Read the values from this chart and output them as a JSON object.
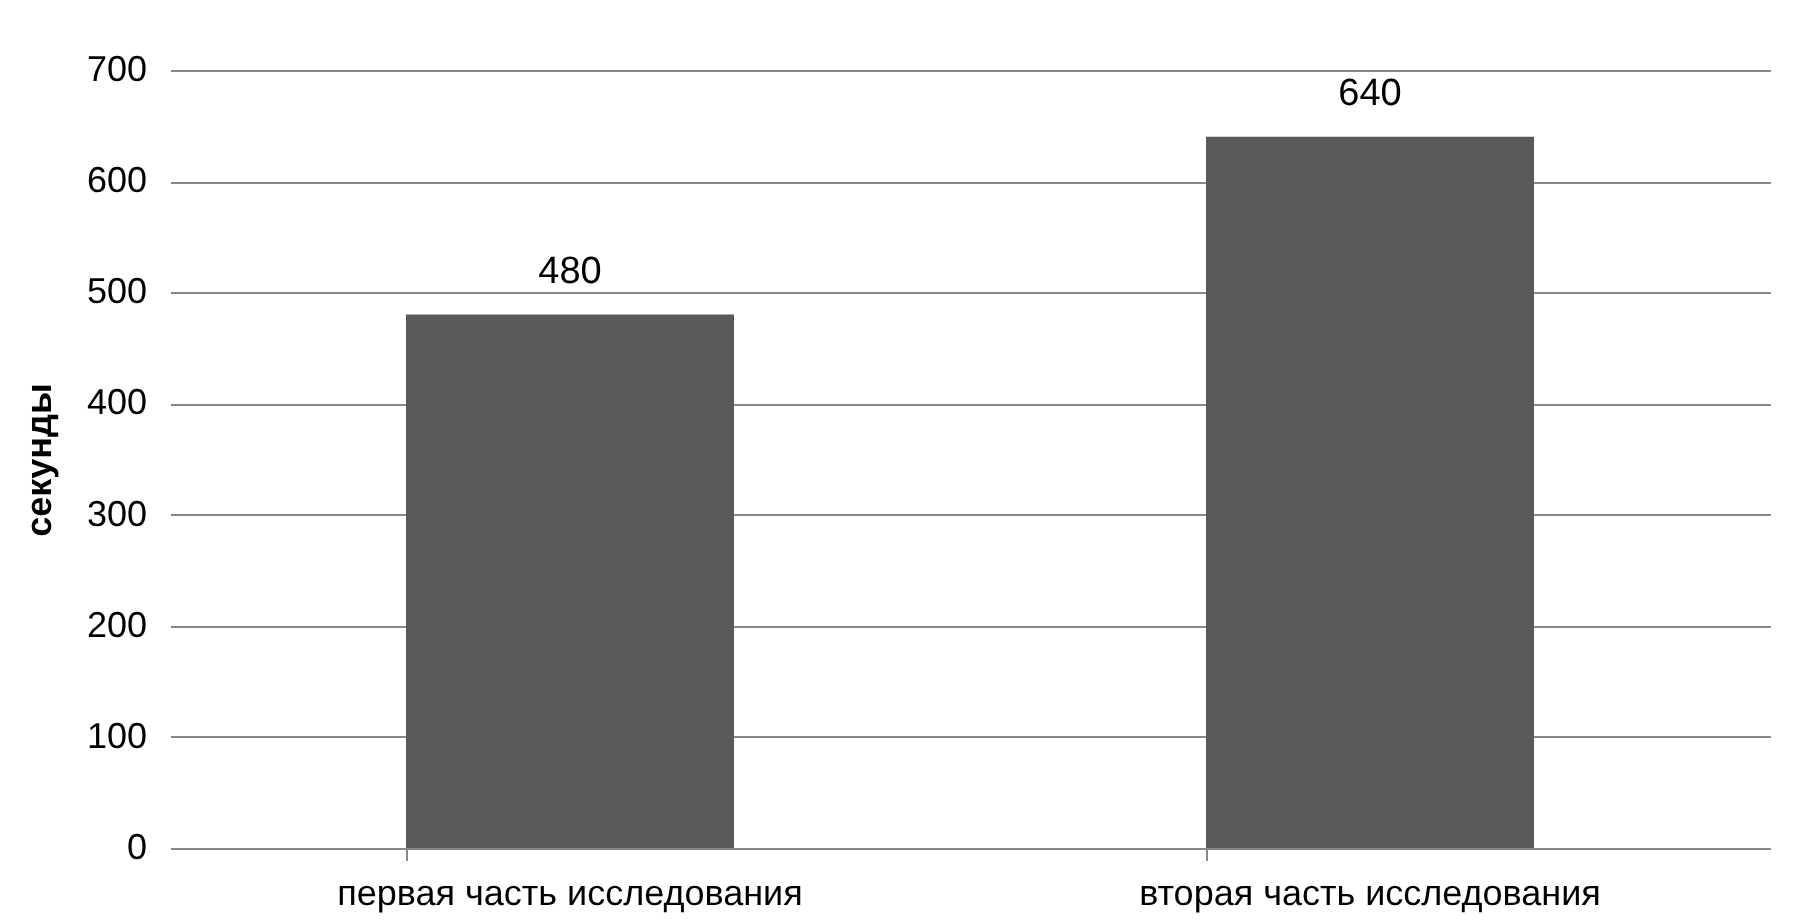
{
  "chart_data": {
    "type": "bar",
    "ylabel": "секунды",
    "categories": [
      "первая часть исследования",
      "вторая часть исследования"
    ],
    "values": [
      480,
      640
    ],
    "color": "#595959",
    "ylim": [
      0,
      700
    ],
    "yticks": [
      0,
      100,
      200,
      300,
      400,
      500,
      600,
      700
    ],
    "grid": "y",
    "data_labels": true
  }
}
